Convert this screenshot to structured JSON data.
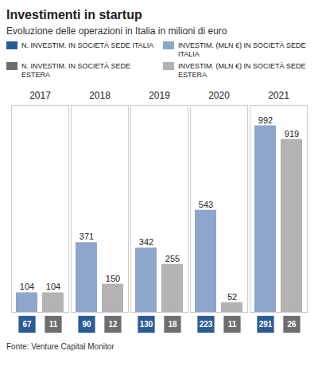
{
  "chart_data": {
    "type": "bar",
    "title": "Investimenti in startup",
    "subtitle": "Evoluzione delle operazioni in Italia in milioni di euro",
    "source": "Fonte: Venture Capital Monitor",
    "categories": [
      "2017",
      "2018",
      "2019",
      "2020",
      "2021"
    ],
    "series": [
      {
        "name": "N. INVESTIM. IN SOCIETÀ SEDE ITALIA",
        "type": "label",
        "color": "#2b5c97",
        "values": [
          67,
          90,
          130,
          223,
          291
        ]
      },
      {
        "name": "INVESTIM. (MLN €) IN SOCIETÀ SEDE ITALIA",
        "type": "bar",
        "color": "#8ea6cb",
        "values": [
          104,
          371,
          342,
          543,
          992
        ]
      },
      {
        "name": "N. INVESTIM. IN SOCIETÀ SEDE ESTERA",
        "type": "label",
        "color": "#6e6e6e",
        "values": [
          11,
          12,
          18,
          11,
          26
        ]
      },
      {
        "name": "INVESTIM. (MLN €) IN SOCIETÀ SEDE ESTERA",
        "type": "bar",
        "color": "#b3b3b3",
        "values": [
          104,
          150,
          255,
          52,
          919
        ]
      }
    ],
    "ylim": [
      0,
      1100
    ],
    "yticks": [],
    "data_labels": true,
    "tick_labels": "x",
    "legend": "top",
    "grid": false
  }
}
